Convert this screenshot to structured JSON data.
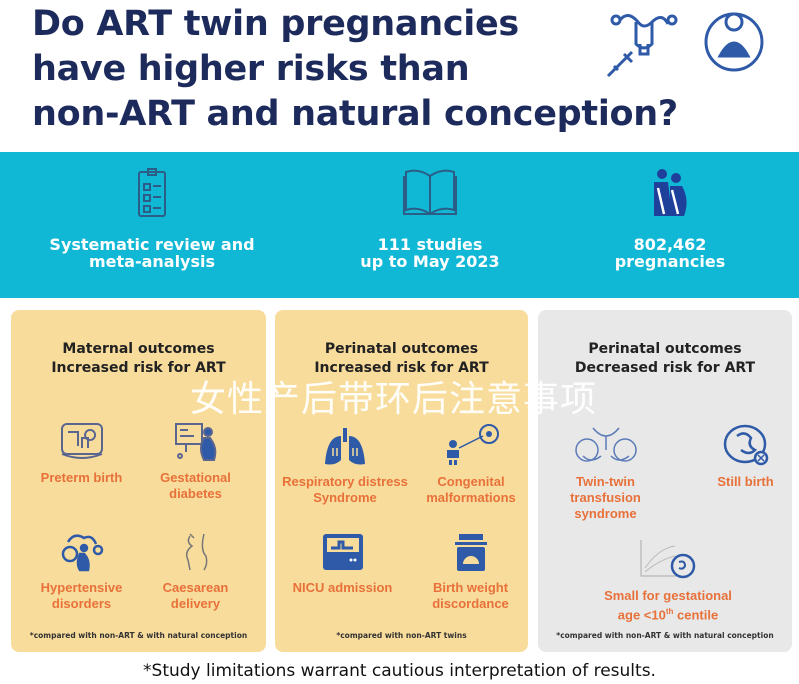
{
  "title": {
    "lines": [
      "Do ART twin pregnancies",
      "have higher risks than",
      "non-ART and natural conception?"
    ]
  },
  "stats": [
    {
      "icon": "clipboard-checklist-icon",
      "lines": [
        "Systematic review and",
        "meta-analysis"
      ]
    },
    {
      "icon": "open-book-icon",
      "lines": [
        "111 studies",
        "up to May 2023"
      ]
    },
    {
      "icon": "pregnant-women-icon",
      "lines": [
        "802,462",
        "pregnancies"
      ]
    }
  ],
  "panels": [
    {
      "heading": [
        "Maternal outcomes",
        "Increased risk for ART"
      ],
      "items": [
        {
          "icon": "incubator-icon",
          "label": [
            "Preterm birth"
          ]
        },
        {
          "icon": "glucose-monitor-pregnant-icon",
          "label": [
            "Gestational",
            "diabetes"
          ]
        },
        {
          "icon": "blood-pressure-pregnant-icon",
          "label": [
            "Hypertensive",
            "disorders"
          ]
        },
        {
          "icon": "caesarean-icon",
          "label": [
            "Caesarean",
            "delivery"
          ]
        }
      ],
      "note": "*compared with non-ART & with natural conception"
    },
    {
      "heading": [
        "Perinatal outcomes",
        "Increased risk for ART"
      ],
      "items": [
        {
          "icon": "lungs-icon",
          "label": [
            "Respiratory distress",
            "Syndrome"
          ]
        },
        {
          "icon": "baby-heart-icon",
          "label": [
            "Congenital",
            "malformations"
          ]
        },
        {
          "icon": "nicu-incubator-icon",
          "label": [
            "NICU admission"
          ]
        },
        {
          "icon": "baby-scale-icon",
          "label": [
            "Birth weight",
            "discordance"
          ]
        }
      ],
      "note": "*compared with non-ART twins"
    },
    {
      "heading": [
        "Perinatal outcomes",
        "Decreased risk for ART"
      ],
      "items": [
        {
          "icon": "twin-fetuses-icon",
          "label": [
            "Twin-twin",
            "transfusion",
            "syndrome"
          ]
        },
        {
          "icon": "fetus-x-icon",
          "label": [
            "Still birth"
          ]
        },
        {
          "icon": "growth-chart-fetus-icon",
          "label": [
            "Small for gestational",
            "age <10",
            "th",
            " centile"
          ]
        }
      ],
      "note": "*compared with non-ART & with natural conception"
    }
  ],
  "footer": "*Study limitations warrant cautious interpretation of results.",
  "watermark": "女性产后带环后注意事项",
  "colors": {
    "title": "#1d2a5c",
    "band": "#10b8d6",
    "panel_increased": "#f8dc9c",
    "panel_decreased": "#e8e8e8",
    "label": "#e8713a",
    "icon": "#2e5aa8"
  }
}
